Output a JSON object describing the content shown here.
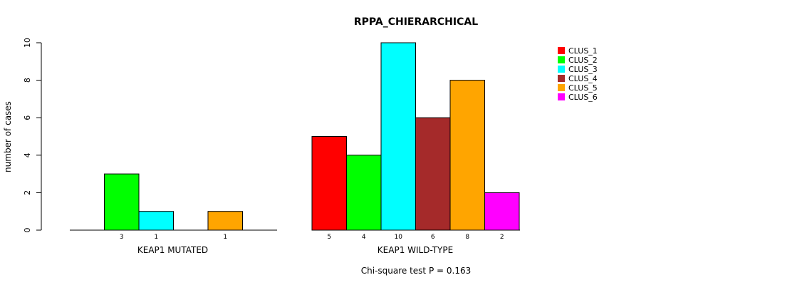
{
  "chart_data": {
    "type": "bar",
    "title": "RPPA_CHIERARCHICAL",
    "ylabel": "number of cases",
    "ylim": [
      0,
      10
    ],
    "yticks": [
      0,
      2,
      4,
      6,
      8,
      10
    ],
    "series": [
      {
        "name": "CLUS_1",
        "color": "#ff0000"
      },
      {
        "name": "CLUS_2",
        "color": "#00ff00"
      },
      {
        "name": "CLUS_3",
        "color": "#00ffff"
      },
      {
        "name": "CLUS_4",
        "color": "#a52a2a"
      },
      {
        "name": "CLUS_5",
        "color": "#ffa500"
      },
      {
        "name": "CLUS_6",
        "color": "#ff00ff"
      }
    ],
    "groups": [
      {
        "label": "KEAP1 MUTATED",
        "values": [
          0,
          3,
          1,
          0,
          1,
          0
        ]
      },
      {
        "label": "KEAP1 WILD-TYPE",
        "values": [
          5,
          4,
          10,
          6,
          8,
          2
        ]
      }
    ],
    "annotation": "Chi-square test P = 0.163",
    "legend_position": "top-right"
  }
}
